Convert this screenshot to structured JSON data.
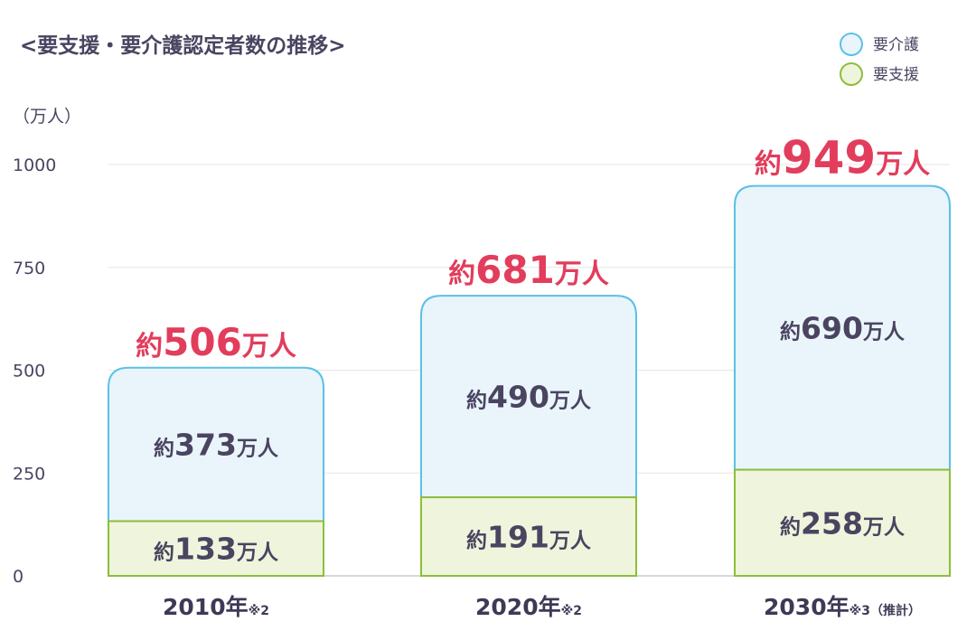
{
  "chart_data": {
    "type": "bar",
    "stacked": true,
    "title": "<要支援・要介護認定者数の推移>",
    "unit_label": "（万人）",
    "ylim": [
      0,
      1000
    ],
    "yticks": [
      0,
      250,
      500,
      750,
      1000
    ],
    "grid": true,
    "legend_position": "top-right",
    "categories": [
      {
        "year": "2010年",
        "note": "※2"
      },
      {
        "year": "2020年",
        "note": "※2"
      },
      {
        "year": "2030年",
        "note": "※3（推計）"
      }
    ],
    "series": [
      {
        "name": "要支援",
        "color_fill": "#eef5dc",
        "color_stroke": "#8fbd3b",
        "values": [
          133,
          191,
          258
        ],
        "labels": [
          {
            "prefix": "約",
            "value": "133",
            "suffix": "万人"
          },
          {
            "prefix": "約",
            "value": "191",
            "suffix": "万人"
          },
          {
            "prefix": "約",
            "value": "258",
            "suffix": "万人"
          }
        ]
      },
      {
        "name": "要介護",
        "color_fill": "#e9f5fb",
        "color_stroke": "#5bc1e6",
        "values": [
          373,
          490,
          690
        ],
        "labels": [
          {
            "prefix": "約",
            "value": "373",
            "suffix": "万人"
          },
          {
            "prefix": "約",
            "value": "490",
            "suffix": "万人"
          },
          {
            "prefix": "約",
            "value": "690",
            "suffix": "万人"
          }
        ]
      }
    ],
    "totals": [
      506,
      681,
      949
    ],
    "total_labels": [
      {
        "prefix": "約",
        "value": "506",
        "suffix": "万人"
      },
      {
        "prefix": "約",
        "value": "681",
        "suffix": "万人"
      },
      {
        "prefix": "約",
        "value": "949",
        "suffix": "万人"
      }
    ],
    "legend": [
      {
        "name": "要介護",
        "color_fill": "#e9f5fb",
        "color_stroke": "#5bc1e6"
      },
      {
        "name": "要支援",
        "color_fill": "#eef5dc",
        "color_stroke": "#8fbd3b"
      }
    ],
    "colors": {
      "total": "#e23d5c",
      "text": "#4a4461",
      "grid": "#e6e6e6",
      "axis": "#cccccc"
    }
  }
}
